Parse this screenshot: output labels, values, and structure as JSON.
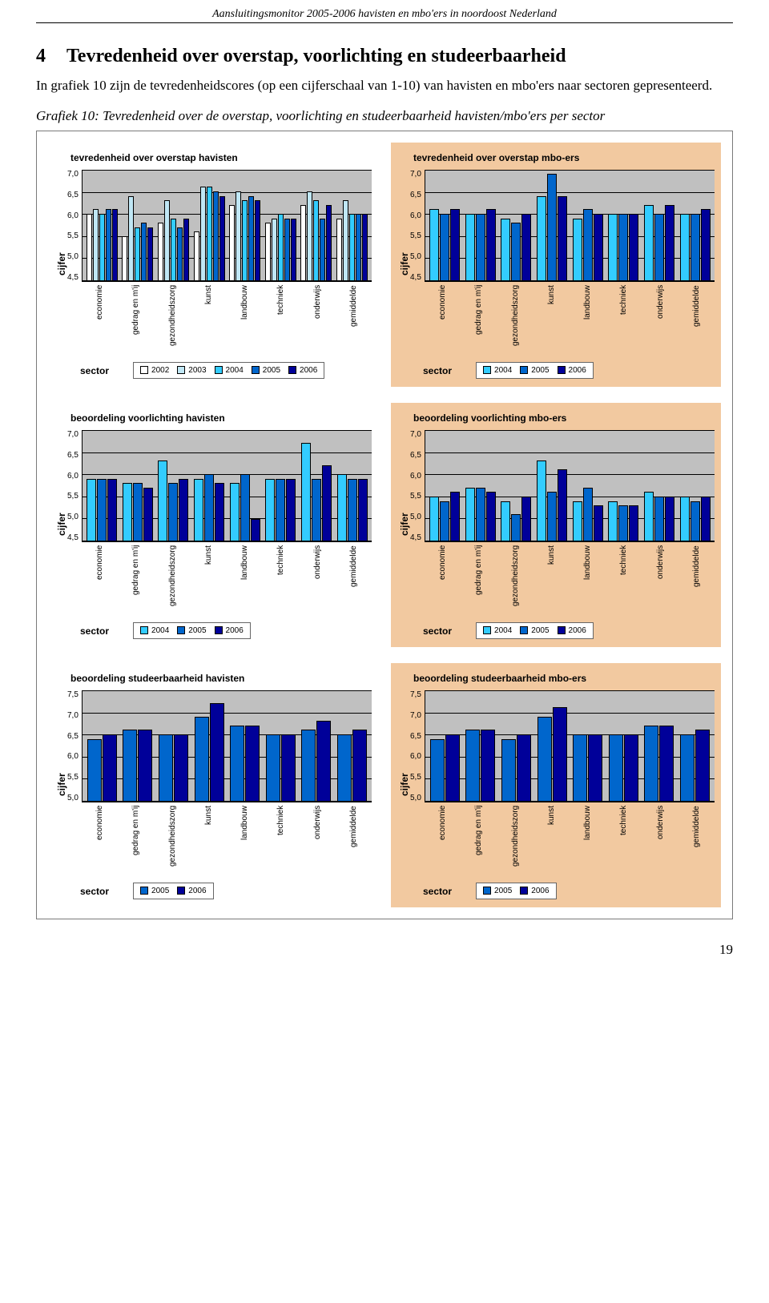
{
  "running_header": "Aansluitingsmonitor 2005-2006 havisten en mbo'ers in noordoost Nederland",
  "section": {
    "number": "4",
    "title": "Tevredenheid over overstap, voorlichting en studeerbaarheid"
  },
  "body": "In grafiek 10 zijn de tevredenheidscores (op een cijferschaal van 1-10) van havisten en mbo'ers naar sectoren gepresenteerd.",
  "caption": "Grafiek 10: Tevredenheid over de overstap, voorlichting en studeerbaarheid havisten/mbo'ers per sector",
  "page_number": "19",
  "palette": {
    "years": {
      "2002": "#ffffff",
      "2003": "#c0e7f5",
      "2004": "#33ccff",
      "2005": "#0066cc",
      "2006": "#000099"
    },
    "plot_bg": "#c0c0c0",
    "panel_havisten_bg": "#ffffff",
    "panel_mbo_bg": "#f2c9a0"
  },
  "categories": [
    "economie",
    "gedrag en m'ij",
    "gezondheidszorg",
    "kunst",
    "landbouw",
    "techniek",
    "onderwijs",
    "gemiddelde"
  ],
  "axis_labels": {
    "y": "cijfer",
    "x": "sector"
  },
  "charts": [
    {
      "id": "overstap-havisten",
      "title": "tevredenheid over overstap havisten",
      "group": "havisten",
      "ylim": [
        4.5,
        7.0
      ],
      "ystep": 0.5,
      "years": [
        "2002",
        "2003",
        "2004",
        "2005",
        "2006"
      ],
      "data": {
        "economie": [
          6.0,
          6.1,
          6.0,
          6.1,
          6.1
        ],
        "gedrag en m'ij": [
          5.5,
          6.4,
          5.7,
          5.8,
          5.7
        ],
        "gezondheidszorg": [
          5.8,
          6.3,
          5.9,
          5.7,
          5.9
        ],
        "kunst": [
          5.6,
          6.6,
          6.6,
          6.5,
          6.4
        ],
        "landbouw": [
          6.2,
          6.5,
          6.3,
          6.4,
          6.3
        ],
        "techniek": [
          5.8,
          5.9,
          6.0,
          5.9,
          5.9
        ],
        "onderwijs": [
          6.2,
          6.5,
          6.3,
          5.9,
          6.2
        ],
        "gemiddelde": [
          5.9,
          6.3,
          6.0,
          6.0,
          6.0
        ]
      }
    },
    {
      "id": "overstap-mbo",
      "title": "tevredenheid over overstap mbo-ers",
      "group": "mbo",
      "ylim": [
        4.5,
        7.0
      ],
      "ystep": 0.5,
      "years": [
        "2004",
        "2005",
        "2006"
      ],
      "data": {
        "economie": [
          6.1,
          6.0,
          6.1
        ],
        "gedrag en m'ij": [
          6.0,
          6.0,
          6.1
        ],
        "gezondheidszorg": [
          5.9,
          5.8,
          6.0
        ],
        "kunst": [
          6.4,
          6.9,
          6.4
        ],
        "landbouw": [
          5.9,
          6.1,
          6.0
        ],
        "techniek": [
          6.0,
          6.0,
          6.0
        ],
        "onderwijs": [
          6.2,
          6.0,
          6.2
        ],
        "gemiddelde": [
          6.0,
          6.0,
          6.1
        ]
      }
    },
    {
      "id": "voorlichting-havisten",
      "title": "beoordeling voorlichting havisten",
      "group": "havisten",
      "ylim": [
        4.5,
        7.0
      ],
      "ystep": 0.5,
      "years": [
        "2004",
        "2005",
        "2006"
      ],
      "data": {
        "economie": [
          5.9,
          5.9,
          5.9
        ],
        "gedrag en m'ij": [
          5.8,
          5.8,
          5.7
        ],
        "gezondheidszorg": [
          6.3,
          5.8,
          5.9
        ],
        "kunst": [
          5.9,
          6.0,
          5.8
        ],
        "landbouw": [
          5.8,
          6.0,
          5.0
        ],
        "techniek": [
          5.9,
          5.9,
          5.9
        ],
        "onderwijs": [
          6.7,
          5.9,
          6.2
        ],
        "gemiddelde": [
          6.0,
          5.9,
          5.9
        ]
      }
    },
    {
      "id": "voorlichting-mbo",
      "title": "beoordeling voorlichting mbo-ers",
      "group": "mbo",
      "ylim": [
        4.5,
        7.0
      ],
      "ystep": 0.5,
      "years": [
        "2004",
        "2005",
        "2006"
      ],
      "data": {
        "economie": [
          5.5,
          5.4,
          5.6
        ],
        "gedrag en m'ij": [
          5.7,
          5.7,
          5.6
        ],
        "gezondheidszorg": [
          5.4,
          5.1,
          5.5
        ],
        "kunst": [
          6.3,
          5.6,
          6.1
        ],
        "landbouw": [
          5.4,
          5.7,
          5.3
        ],
        "techniek": [
          5.4,
          5.3,
          5.3
        ],
        "onderwijs": [
          5.6,
          5.5,
          5.5
        ],
        "gemiddelde": [
          5.5,
          5.4,
          5.5
        ]
      }
    },
    {
      "id": "studeerbaarheid-havisten",
      "title": "beoordeling studeerbaarheid havisten",
      "group": "havisten",
      "ylim": [
        5.0,
        7.5
      ],
      "ystep": 0.5,
      "years": [
        "2005",
        "2006"
      ],
      "data": {
        "economie": [
          6.4,
          6.5
        ],
        "gedrag en m'ij": [
          6.6,
          6.6
        ],
        "gezondheidszorg": [
          6.5,
          6.5
        ],
        "kunst": [
          6.9,
          7.2
        ],
        "landbouw": [
          6.7,
          6.7
        ],
        "techniek": [
          6.5,
          6.5
        ],
        "onderwijs": [
          6.6,
          6.8
        ],
        "gemiddelde": [
          6.5,
          6.6
        ]
      }
    },
    {
      "id": "studeerbaarheid-mbo",
      "title": "beoordeling studeerbaarheid mbo-ers",
      "group": "mbo",
      "ylim": [
        5.0,
        7.5
      ],
      "ystep": 0.5,
      "years": [
        "2005",
        "2006"
      ],
      "data": {
        "economie": [
          6.4,
          6.5
        ],
        "gedrag en m'ij": [
          6.6,
          6.6
        ],
        "gezondheidszorg": [
          6.4,
          6.5
        ],
        "kunst": [
          6.9,
          7.1
        ],
        "landbouw": [
          6.5,
          6.5
        ],
        "techniek": [
          6.5,
          6.5
        ],
        "onderwijs": [
          6.7,
          6.7
        ],
        "gemiddelde": [
          6.5,
          6.6
        ]
      }
    }
  ]
}
